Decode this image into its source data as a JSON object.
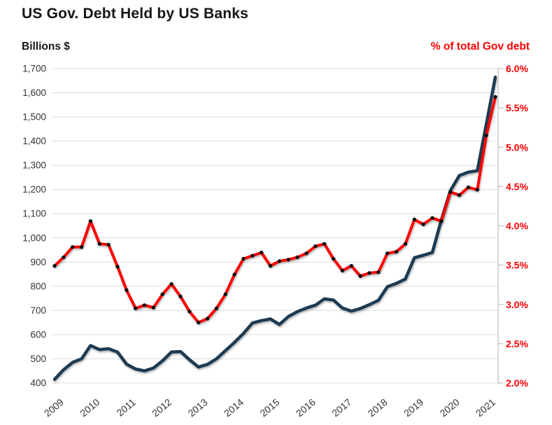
{
  "chart_data": {
    "type": "line",
    "title": "US Gov. Debt Held by US Banks",
    "grid": {
      "show_horizontal": true,
      "color": "#dcdcdc"
    },
    "left_axis": {
      "title": "Billions $",
      "min": 400,
      "max": 1700,
      "step": 100,
      "tick_values": [
        1700,
        1600,
        1500,
        1400,
        1300,
        1200,
        1100,
        1000,
        900,
        800,
        700,
        600,
        500,
        400
      ],
      "tick_labels": [
        "1,700",
        "1,600",
        "1,500",
        "1,400",
        "1,300",
        "1,200",
        "1,100",
        "1,000",
        "900",
        "800",
        "700",
        "600",
        "500",
        "400"
      ],
      "label_color": "#333333"
    },
    "right_axis": {
      "title": "% of total Gov debt",
      "min": 2.0,
      "max": 6.0,
      "step": 0.5,
      "tick_values": [
        6.0,
        5.5,
        5.0,
        4.5,
        4.0,
        3.5,
        3.0,
        2.5,
        2.0
      ],
      "tick_labels": [
        "6.0%",
        "5.5%",
        "5.0%",
        "4.5%",
        "4.0%",
        "3.5%",
        "3.0%",
        "2.5%",
        "2.0%"
      ],
      "label_color": "#fe0000",
      "axis_line_color": "#bfbfbf"
    },
    "x_axis": {
      "year_labels": [
        "2009",
        "2010",
        "2011",
        "2012",
        "2013",
        "2014",
        "2015",
        "2016",
        "2017",
        "2018",
        "2019",
        "2020",
        "2021"
      ],
      "label_every_n_points": 4,
      "rotation_deg": -40,
      "label_color": "#333333"
    },
    "categories": [
      "2009 Q1",
      "2009 Q2",
      "2009 Q3",
      "2009 Q4",
      "2010 Q1",
      "2010 Q2",
      "2010 Q3",
      "2010 Q4",
      "2011 Q1",
      "2011 Q2",
      "2011 Q3",
      "2011 Q4",
      "2012 Q1",
      "2012 Q2",
      "2012 Q3",
      "2012 Q4",
      "2013 Q1",
      "2013 Q2",
      "2013 Q3",
      "2013 Q4",
      "2014 Q1",
      "2014 Q2",
      "2014 Q3",
      "2014 Q4",
      "2015 Q1",
      "2015 Q2",
      "2015 Q3",
      "2015 Q4",
      "2016 Q1",
      "2016 Q2",
      "2016 Q3",
      "2016 Q4",
      "2017 Q1",
      "2017 Q2",
      "2017 Q3",
      "2017 Q4",
      "2018 Q1",
      "2018 Q2",
      "2018 Q3",
      "2018 Q4",
      "2019 Q1",
      "2019 Q2",
      "2019 Q3",
      "2019 Q4",
      "2020 Q1",
      "2020 Q2",
      "2020 Q3",
      "2020 Q4",
      "2021 Q1",
      "2021 Q2"
    ],
    "series": [
      {
        "name": "US Gov. debt held by US banks (Billions $)",
        "axis": "left",
        "color": "#1f3a52",
        "line_width": 4.5,
        "marker": "none",
        "values": [
          415,
          455,
          485,
          500,
          555,
          538,
          542,
          528,
          478,
          458,
          450,
          462,
          492,
          528,
          530,
          496,
          466,
          477,
          500,
          534,
          568,
          605,
          648,
          658,
          665,
          642,
          675,
          695,
          710,
          722,
          748,
          743,
          710,
          697,
          708,
          724,
          742,
          798,
          812,
          830,
          918,
          928,
          940,
          1075,
          1195,
          1258,
          1272,
          1278,
          1470,
          1665
        ]
      },
      {
        "name": "% of total Gov debt",
        "axis": "right",
        "color": "#fe0000",
        "line_width": 4,
        "marker": "black-dot",
        "marker_color": "#0b0b0b",
        "values": [
          3.49,
          3.6,
          3.73,
          3.73,
          4.06,
          3.77,
          3.76,
          3.48,
          3.18,
          2.95,
          2.99,
          2.96,
          3.13,
          3.26,
          3.1,
          2.91,
          2.77,
          2.82,
          2.95,
          3.13,
          3.38,
          3.58,
          3.62,
          3.66,
          3.49,
          3.55,
          3.57,
          3.6,
          3.65,
          3.74,
          3.77,
          3.58,
          3.43,
          3.49,
          3.36,
          3.4,
          3.41,
          3.65,
          3.67,
          3.77,
          4.08,
          4.02,
          4.1,
          4.06,
          4.43,
          4.39,
          4.49,
          4.46,
          5.15,
          5.64
        ]
      }
    ],
    "legend": "none"
  }
}
